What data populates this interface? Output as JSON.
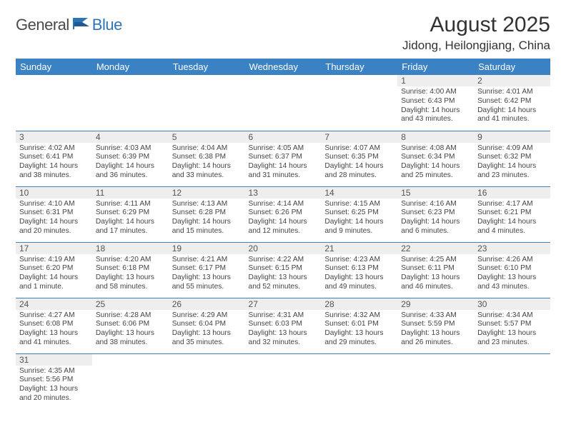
{
  "brand": {
    "part1": "General",
    "part2": "Blue"
  },
  "title": "August 2025",
  "location": "Jidong, Heilongjiang, China",
  "colors": {
    "header_bg": "#3b82c4",
    "header_fg": "#ffffff",
    "daynum_bg": "#eeeeee",
    "border": "#3b82c4",
    "brand_blue": "#2d74b5",
    "text": "#333333"
  },
  "day_headers": [
    "Sunday",
    "Monday",
    "Tuesday",
    "Wednesday",
    "Thursday",
    "Friday",
    "Saturday"
  ],
  "weeks": [
    [
      {
        "empty": true
      },
      {
        "empty": true
      },
      {
        "empty": true
      },
      {
        "empty": true
      },
      {
        "empty": true
      },
      {
        "n": "1",
        "sunrise": "4:00 AM",
        "sunset": "6:43 PM",
        "daylight": "14 hours and 43 minutes."
      },
      {
        "n": "2",
        "sunrise": "4:01 AM",
        "sunset": "6:42 PM",
        "daylight": "14 hours and 41 minutes."
      }
    ],
    [
      {
        "n": "3",
        "sunrise": "4:02 AM",
        "sunset": "6:41 PM",
        "daylight": "14 hours and 38 minutes."
      },
      {
        "n": "4",
        "sunrise": "4:03 AM",
        "sunset": "6:39 PM",
        "daylight": "14 hours and 36 minutes."
      },
      {
        "n": "5",
        "sunrise": "4:04 AM",
        "sunset": "6:38 PM",
        "daylight": "14 hours and 33 minutes."
      },
      {
        "n": "6",
        "sunrise": "4:05 AM",
        "sunset": "6:37 PM",
        "daylight": "14 hours and 31 minutes."
      },
      {
        "n": "7",
        "sunrise": "4:07 AM",
        "sunset": "6:35 PM",
        "daylight": "14 hours and 28 minutes."
      },
      {
        "n": "8",
        "sunrise": "4:08 AM",
        "sunset": "6:34 PM",
        "daylight": "14 hours and 25 minutes."
      },
      {
        "n": "9",
        "sunrise": "4:09 AM",
        "sunset": "6:32 PM",
        "daylight": "14 hours and 23 minutes."
      }
    ],
    [
      {
        "n": "10",
        "sunrise": "4:10 AM",
        "sunset": "6:31 PM",
        "daylight": "14 hours and 20 minutes."
      },
      {
        "n": "11",
        "sunrise": "4:11 AM",
        "sunset": "6:29 PM",
        "daylight": "14 hours and 17 minutes."
      },
      {
        "n": "12",
        "sunrise": "4:13 AM",
        "sunset": "6:28 PM",
        "daylight": "14 hours and 15 minutes."
      },
      {
        "n": "13",
        "sunrise": "4:14 AM",
        "sunset": "6:26 PM",
        "daylight": "14 hours and 12 minutes."
      },
      {
        "n": "14",
        "sunrise": "4:15 AM",
        "sunset": "6:25 PM",
        "daylight": "14 hours and 9 minutes."
      },
      {
        "n": "15",
        "sunrise": "4:16 AM",
        "sunset": "6:23 PM",
        "daylight": "14 hours and 6 minutes."
      },
      {
        "n": "16",
        "sunrise": "4:17 AM",
        "sunset": "6:21 PM",
        "daylight": "14 hours and 4 minutes."
      }
    ],
    [
      {
        "n": "17",
        "sunrise": "4:19 AM",
        "sunset": "6:20 PM",
        "daylight": "14 hours and 1 minute."
      },
      {
        "n": "18",
        "sunrise": "4:20 AM",
        "sunset": "6:18 PM",
        "daylight": "13 hours and 58 minutes."
      },
      {
        "n": "19",
        "sunrise": "4:21 AM",
        "sunset": "6:17 PM",
        "daylight": "13 hours and 55 minutes."
      },
      {
        "n": "20",
        "sunrise": "4:22 AM",
        "sunset": "6:15 PM",
        "daylight": "13 hours and 52 minutes."
      },
      {
        "n": "21",
        "sunrise": "4:23 AM",
        "sunset": "6:13 PM",
        "daylight": "13 hours and 49 minutes."
      },
      {
        "n": "22",
        "sunrise": "4:25 AM",
        "sunset": "6:11 PM",
        "daylight": "13 hours and 46 minutes."
      },
      {
        "n": "23",
        "sunrise": "4:26 AM",
        "sunset": "6:10 PM",
        "daylight": "13 hours and 43 minutes."
      }
    ],
    [
      {
        "n": "24",
        "sunrise": "4:27 AM",
        "sunset": "6:08 PM",
        "daylight": "13 hours and 41 minutes."
      },
      {
        "n": "25",
        "sunrise": "4:28 AM",
        "sunset": "6:06 PM",
        "daylight": "13 hours and 38 minutes."
      },
      {
        "n": "26",
        "sunrise": "4:29 AM",
        "sunset": "6:04 PM",
        "daylight": "13 hours and 35 minutes."
      },
      {
        "n": "27",
        "sunrise": "4:31 AM",
        "sunset": "6:03 PM",
        "daylight": "13 hours and 32 minutes."
      },
      {
        "n": "28",
        "sunrise": "4:32 AM",
        "sunset": "6:01 PM",
        "daylight": "13 hours and 29 minutes."
      },
      {
        "n": "29",
        "sunrise": "4:33 AM",
        "sunset": "5:59 PM",
        "daylight": "13 hours and 26 minutes."
      },
      {
        "n": "30",
        "sunrise": "4:34 AM",
        "sunset": "5:57 PM",
        "daylight": "13 hours and 23 minutes."
      }
    ],
    [
      {
        "n": "31",
        "sunrise": "4:35 AM",
        "sunset": "5:56 PM",
        "daylight": "13 hours and 20 minutes."
      },
      {
        "empty": true,
        "trailing": true
      },
      {
        "empty": true,
        "trailing": true
      },
      {
        "empty": true,
        "trailing": true
      },
      {
        "empty": true,
        "trailing": true
      },
      {
        "empty": true,
        "trailing": true
      },
      {
        "empty": true,
        "trailing": true
      }
    ]
  ],
  "labels": {
    "sunrise": "Sunrise:",
    "sunset": "Sunset:",
    "daylight": "Daylight:"
  }
}
